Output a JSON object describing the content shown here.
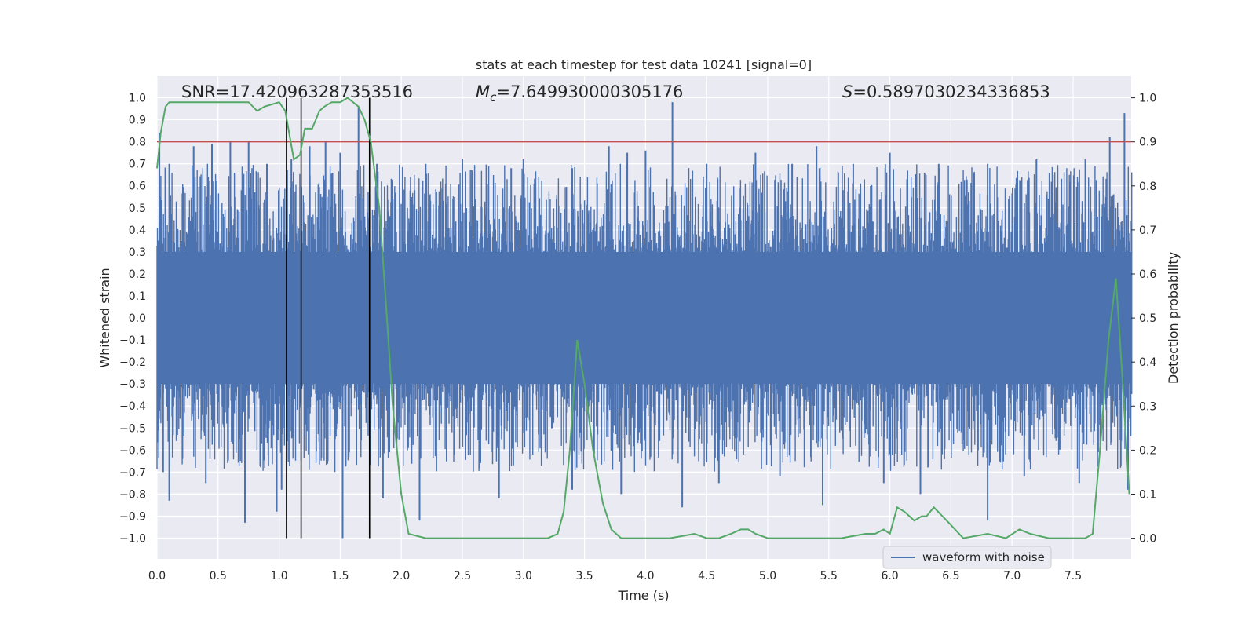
{
  "chart_data": {
    "type": "line",
    "title": "stats at each timestep for test data 10241 [signal=0]",
    "xlabel": "Time (s)",
    "ylabel": "Whitened strain",
    "y2label": "Detection probability",
    "xlim": [
      0,
      8
    ],
    "ylim": [
      -1.1,
      1.1
    ],
    "y2lim": [
      -0.05,
      1.05
    ],
    "xticks": [
      "0.0",
      "0.5",
      "1.0",
      "1.5",
      "2.0",
      "2.5",
      "3.0",
      "3.5",
      "4.0",
      "4.5",
      "5.0",
      "5.5",
      "6.0",
      "6.5",
      "7.0",
      "7.5"
    ],
    "yticks": [
      "1.0",
      "0.9",
      "0.8",
      "0.7",
      "0.6",
      "0.5",
      "0.4",
      "0.3",
      "0.2",
      "0.1",
      "0.0",
      "−0.1",
      "−0.2",
      "−0.3",
      "−0.4",
      "−0.5",
      "−0.6",
      "−0.7",
      "−0.8",
      "−0.9",
      "−1.0"
    ],
    "y2ticks": [
      "1.0",
      "0.9",
      "0.8",
      "0.7",
      "0.6",
      "0.5",
      "0.4",
      "0.3",
      "0.2",
      "0.1",
      "0.0"
    ],
    "grid": true,
    "annotations": {
      "snr": "SNR=17.420963287353516",
      "mc_symbol": "M",
      "mc_sub": "c",
      "mc_value": "=7.649930000305176",
      "s_symbol": "S",
      "s_value": "=0.5897030234336853"
    },
    "legend": {
      "label": "waveform with noise",
      "placement": "lower-right"
    },
    "threshold": {
      "y": 0.8,
      "color": "#c44e52"
    },
    "vlines_x": [
      1.06,
      1.18,
      1.74
    ],
    "vline_range": [
      -1.0,
      1.0
    ],
    "series": [
      {
        "name": "waveform with noise",
        "color": "#4c72b0",
        "note_envelope": "dense noise trace; sampled peaks listed",
        "peaks_pos_x": [
          0.02,
          0.1,
          0.3,
          0.45,
          0.6,
          0.75,
          0.9,
          1.1,
          1.25,
          1.38,
          1.5,
          1.65,
          1.8,
          2.2,
          2.5,
          2.9,
          3.0,
          3.4,
          3.7,
          3.85,
          4.0,
          4.22,
          4.5,
          4.9,
          5.2,
          5.4,
          5.7,
          6.0,
          6.4,
          6.8,
          7.2,
          7.6,
          7.8,
          7.92
        ],
        "peaks_pos_y": [
          0.84,
          0.7,
          0.78,
          0.79,
          0.8,
          0.8,
          0.7,
          0.72,
          0.78,
          0.8,
          0.75,
          0.96,
          0.7,
          0.7,
          0.72,
          0.68,
          0.72,
          0.68,
          0.78,
          0.75,
          0.76,
          0.98,
          0.7,
          0.75,
          0.7,
          0.78,
          0.7,
          0.75,
          0.7,
          0.7,
          0.72,
          0.72,
          0.82,
          0.93
        ],
        "peaks_neg_x": [
          0.05,
          0.1,
          0.4,
          0.72,
          0.98,
          1.02,
          1.52,
          1.85,
          2.15,
          2.8,
          3.4,
          3.8,
          4.3,
          4.6,
          5.1,
          5.45,
          5.95,
          6.25,
          6.8,
          7.1,
          7.55,
          7.95
        ],
        "peaks_neg_y": [
          -0.7,
          -0.83,
          -0.75,
          -0.93,
          -0.88,
          -0.78,
          -1.0,
          -0.82,
          -0.92,
          -0.82,
          -0.78,
          -0.8,
          -0.86,
          -0.75,
          -0.72,
          -0.85,
          -0.75,
          -0.8,
          -0.92,
          -0.72,
          -0.75,
          -0.78
        ]
      },
      {
        "name": "",
        "color": "#55a868",
        "axis": "right",
        "x": [
          0.0,
          0.03,
          0.07,
          0.1,
          0.2,
          0.3,
          0.45,
          0.6,
          0.75,
          0.82,
          0.88,
          1.0,
          1.05,
          1.12,
          1.17,
          1.21,
          1.27,
          1.33,
          1.37,
          1.43,
          1.5,
          1.56,
          1.65,
          1.7,
          1.75,
          1.82,
          1.87,
          1.93,
          2.0,
          2.06,
          2.2,
          2.5,
          3.0,
          3.2,
          3.28,
          3.33,
          3.38,
          3.44,
          3.5,
          3.57,
          3.65,
          3.72,
          3.8,
          3.9,
          4.0,
          4.2,
          4.4,
          4.5,
          4.6,
          4.7,
          4.78,
          4.84,
          4.9,
          5.0,
          5.2,
          5.4,
          5.6,
          5.8,
          5.88,
          5.95,
          6.0,
          6.06,
          6.12,
          6.2,
          6.26,
          6.3,
          6.36,
          6.5,
          6.6,
          6.8,
          6.95,
          7.06,
          7.15,
          7.3,
          7.5,
          7.6,
          7.66,
          7.72,
          7.79,
          7.85,
          7.9,
          7.96
        ],
        "y": [
          0.84,
          0.92,
          0.98,
          0.99,
          0.99,
          0.99,
          0.99,
          0.99,
          0.99,
          0.97,
          0.98,
          0.99,
          0.97,
          0.86,
          0.87,
          0.93,
          0.93,
          0.97,
          0.98,
          0.99,
          0.99,
          1.0,
          0.98,
          0.95,
          0.9,
          0.75,
          0.55,
          0.3,
          0.1,
          0.01,
          0.0,
          0.0,
          0.0,
          0.0,
          0.01,
          0.06,
          0.2,
          0.45,
          0.35,
          0.2,
          0.08,
          0.02,
          0.0,
          0.0,
          0.0,
          0.0,
          0.01,
          0.0,
          0.0,
          0.01,
          0.02,
          0.02,
          0.01,
          0.0,
          0.0,
          0.0,
          0.0,
          0.01,
          0.01,
          0.02,
          0.01,
          0.07,
          0.06,
          0.04,
          0.05,
          0.05,
          0.07,
          0.03,
          0.0,
          0.01,
          0.0,
          0.02,
          0.01,
          0.0,
          0.0,
          0.0,
          0.01,
          0.2,
          0.45,
          0.59,
          0.38,
          0.1
        ]
      }
    ]
  }
}
